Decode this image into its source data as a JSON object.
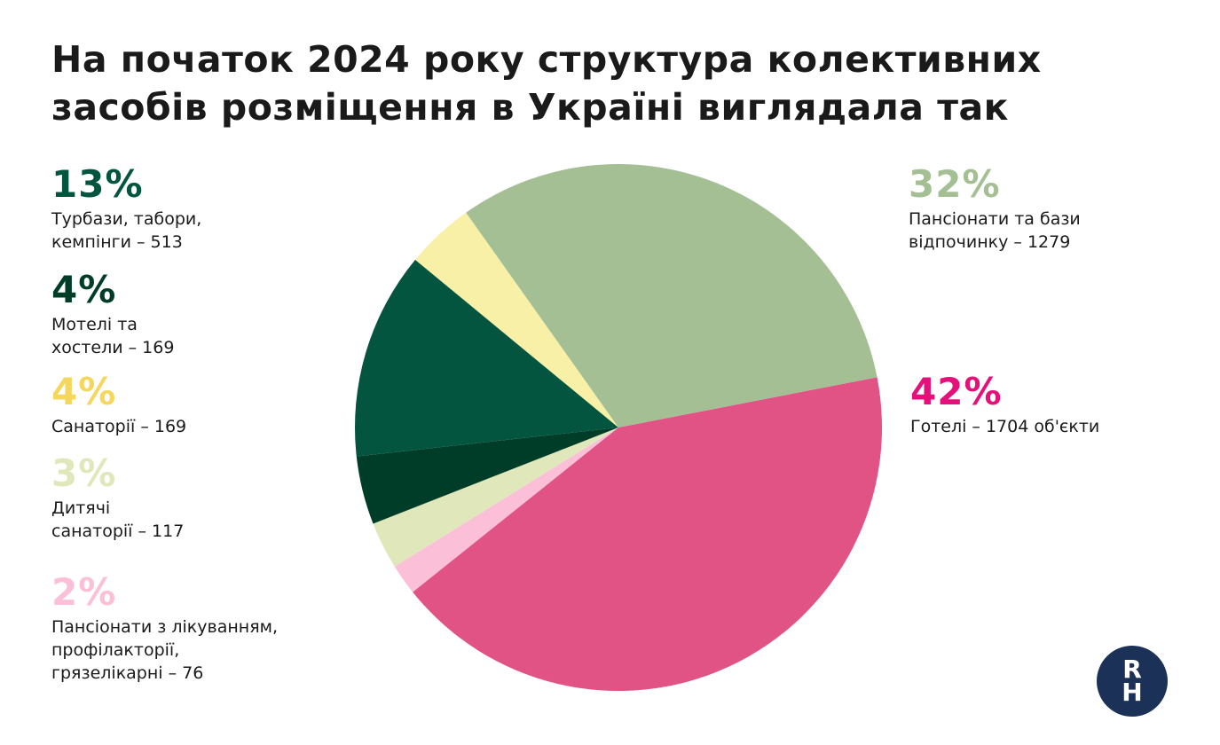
{
  "title": {
    "line1": "На початок 2024 року структура колективних",
    "line2": "засобів розміщення в Україні виглядала так"
  },
  "labels": {
    "turbazy": {
      "pct": "13%",
      "line1": "Турбази, табори,",
      "line2": "кемпінги – 513"
    },
    "motels": {
      "pct": "4%",
      "line1": "Мотелі та",
      "line2": "хостели – 169"
    },
    "sanatoria": {
      "pct": "4%",
      "line1": "Санаторії – 169"
    },
    "kids": {
      "pct": "3%",
      "line1": "Дитячі",
      "line2": "санаторії – 117"
    },
    "treatment": {
      "pct": "2%",
      "line1": "Пансіонати з лікуванням,",
      "line2": "профілакторії,",
      "line3": "грязелікарні – 76"
    },
    "pensions": {
      "pct": "32%",
      "line1": "Пансіонати та бази",
      "line2": "відпочинку – 1279"
    },
    "hotels": {
      "pct": "42%",
      "line1": "Готелі – 1704 об'єкти"
    }
  },
  "logo": {
    "letter1": "R",
    "letter2": "H"
  },
  "chart_data": {
    "type": "pie",
    "title": "На початок 2024 року структура колективних засобів розміщення в Україні виглядала так",
    "slices": [
      {
        "name": "Готелі",
        "value": 1704,
        "percent": 42,
        "color": "#e05384"
      },
      {
        "name": "Пансіонати з лікуванням, профілакторії, грязелікарні",
        "value": 76,
        "percent": 2,
        "color": "#fbbfd8"
      },
      {
        "name": "Дитячі санаторії",
        "value": 117,
        "percent": 3,
        "color": "#e0e8bb"
      },
      {
        "name": "Мотелі та хостели",
        "value": 169,
        "percent": 4,
        "color": "#003d28"
      },
      {
        "name": "Турбази, табори, кемпінги",
        "value": 513,
        "percent": 13,
        "color": "#035540"
      },
      {
        "name": "Санаторії",
        "value": 169,
        "percent": 4,
        "color": "#f8f0a6"
      },
      {
        "name": "Пансіонати та бази відпочинку",
        "value": 1279,
        "percent": 32,
        "color": "#a5bf94"
      }
    ],
    "label_colors": {
      "turbazy": "#035540",
      "motels": "#003d28",
      "sanatoria": "#f5d75e",
      "kids": "#e0e8bb",
      "treatment": "#fbbfd8",
      "pensions": "#a5bf94",
      "hotels": "#e5107a"
    }
  }
}
